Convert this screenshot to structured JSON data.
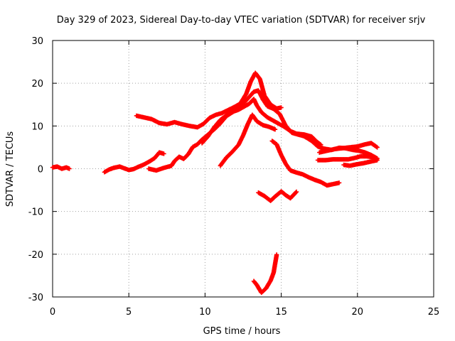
{
  "chart_data": {
    "type": "scatter",
    "title": "Day 329 of 2023, Sidereal Day-to-day VTEC variation (SDTVAR) for receiver srjv",
    "xlabel": "GPS time / hours",
    "ylabel": "SDTVAR / TECUs",
    "xlim": [
      0,
      25
    ],
    "ylim": [
      -30,
      30
    ],
    "xticks": [
      0,
      5,
      10,
      15,
      20,
      25
    ],
    "yticks": [
      -30,
      -20,
      -10,
      0,
      10,
      20,
      30
    ],
    "grid": true,
    "marker": "plus",
    "color": "#ff0000",
    "series": [
      {
        "name": "arc-1",
        "points": [
          [
            0.0,
            0.3
          ],
          [
            0.3,
            0.5
          ],
          [
            0.6,
            0.0
          ],
          [
            0.9,
            0.3
          ],
          [
            1.1,
            0.0
          ]
        ]
      },
      {
        "name": "arc-2",
        "points": [
          [
            3.4,
            -0.8
          ],
          [
            3.7,
            -0.2
          ],
          [
            4.0,
            0.2
          ],
          [
            4.4,
            0.5
          ],
          [
            4.7,
            0.1
          ],
          [
            5.0,
            -0.3
          ],
          [
            5.3,
            -0.1
          ],
          [
            5.6,
            0.4
          ],
          [
            6.0,
            1.0
          ],
          [
            6.4,
            1.8
          ],
          [
            6.7,
            2.5
          ],
          [
            7.0,
            3.8
          ],
          [
            7.3,
            3.5
          ]
        ]
      },
      {
        "name": "arc-3",
        "points": [
          [
            6.3,
            0.0
          ],
          [
            6.8,
            -0.4
          ],
          [
            7.3,
            0.2
          ],
          [
            7.8,
            0.7
          ],
          [
            8.0,
            1.8
          ],
          [
            8.3,
            2.8
          ],
          [
            8.6,
            2.3
          ],
          [
            8.9,
            3.4
          ],
          [
            9.2,
            5.1
          ],
          [
            9.5,
            5.7
          ],
          [
            9.8,
            6.8
          ],
          [
            10.2,
            8.0
          ],
          [
            10.6,
            9.2
          ],
          [
            11.0,
            10.6
          ],
          [
            11.4,
            12.3
          ],
          [
            11.8,
            13.2
          ],
          [
            12.2,
            14.2
          ],
          [
            12.6,
            15.6
          ],
          [
            12.9,
            16.8
          ],
          [
            13.2,
            18.0
          ],
          [
            13.5,
            18.3
          ],
          [
            13.8,
            16.2
          ],
          [
            14.1,
            14.6
          ],
          [
            14.5,
            14.0
          ],
          [
            14.9,
            12.8
          ],
          [
            15.3,
            10.0
          ],
          [
            15.7,
            8.4
          ],
          [
            16.1,
            8.0
          ],
          [
            16.5,
            7.6
          ],
          [
            17.0,
            6.5
          ],
          [
            17.4,
            5.2
          ],
          [
            17.8,
            4.7
          ],
          [
            18.3,
            4.4
          ],
          [
            18.8,
            4.9
          ],
          [
            19.2,
            4.8
          ],
          [
            19.7,
            4.4
          ],
          [
            20.1,
            4.2
          ],
          [
            20.5,
            3.8
          ],
          [
            20.9,
            3.2
          ],
          [
            21.3,
            2.4
          ]
        ]
      },
      {
        "name": "arc-4",
        "points": [
          [
            5.5,
            12.4
          ],
          [
            6.0,
            12.0
          ],
          [
            6.5,
            11.6
          ],
          [
            7.0,
            10.7
          ],
          [
            7.5,
            10.4
          ],
          [
            8.0,
            10.9
          ],
          [
            8.5,
            10.4
          ],
          [
            9.0,
            10.0
          ],
          [
            9.5,
            9.7
          ],
          [
            9.9,
            10.5
          ],
          [
            10.3,
            11.9
          ],
          [
            10.7,
            12.6
          ],
          [
            11.1,
            13.0
          ],
          [
            11.5,
            13.7
          ],
          [
            11.9,
            14.4
          ],
          [
            12.3,
            15.2
          ],
          [
            12.7,
            17.5
          ],
          [
            13.0,
            20.4
          ],
          [
            13.3,
            22.4
          ],
          [
            13.6,
            21.0
          ],
          [
            13.9,
            17.1
          ],
          [
            14.3,
            15.0
          ],
          [
            14.7,
            14.1
          ],
          [
            15.0,
            14.3
          ]
        ]
      },
      {
        "name": "arc-5",
        "points": [
          [
            9.8,
            6.0
          ],
          [
            10.2,
            7.6
          ],
          [
            10.6,
            9.7
          ],
          [
            11.0,
            11.4
          ],
          [
            11.4,
            12.5
          ],
          [
            11.8,
            13.3
          ],
          [
            12.2,
            13.8
          ],
          [
            12.6,
            14.6
          ],
          [
            12.9,
            15.2
          ],
          [
            13.2,
            16.3
          ],
          [
            13.4,
            14.8
          ],
          [
            13.7,
            13.2
          ],
          [
            14.1,
            12.0
          ],
          [
            14.5,
            11.2
          ],
          [
            14.9,
            10.4
          ],
          [
            15.2,
            9.8
          ],
          [
            15.6,
            8.8
          ],
          [
            16.0,
            8.2
          ],
          [
            16.5,
            8.0
          ],
          [
            17.0,
            7.5
          ],
          [
            17.3,
            6.4
          ],
          [
            17.6,
            5.6
          ]
        ]
      },
      {
        "name": "arc-6",
        "points": [
          [
            11.0,
            0.7
          ],
          [
            11.4,
            2.6
          ],
          [
            11.8,
            4.0
          ],
          [
            12.2,
            5.6
          ],
          [
            12.5,
            7.8
          ],
          [
            12.8,
            10.4
          ],
          [
            13.1,
            12.6
          ],
          [
            13.4,
            11.1
          ],
          [
            13.8,
            10.2
          ],
          [
            14.2,
            9.8
          ],
          [
            14.6,
            9.2
          ]
        ]
      },
      {
        "name": "arc-7",
        "points": [
          [
            14.4,
            6.5
          ],
          [
            14.7,
            5.7
          ],
          [
            15.0,
            3.2
          ],
          [
            15.3,
            1.1
          ],
          [
            15.6,
            -0.4
          ],
          [
            16.0,
            -0.9
          ],
          [
            16.4,
            -1.3
          ],
          [
            16.8,
            -2.0
          ],
          [
            17.2,
            -2.6
          ],
          [
            17.6,
            -3.1
          ],
          [
            18.0,
            -3.9
          ],
          [
            18.4,
            -3.6
          ],
          [
            18.8,
            -3.3
          ]
        ]
      },
      {
        "name": "arc-8",
        "points": [
          [
            17.4,
            2.0
          ],
          [
            17.9,
            2.0
          ],
          [
            18.4,
            2.2
          ],
          [
            18.9,
            2.2
          ],
          [
            19.4,
            2.2
          ],
          [
            19.8,
            2.5
          ],
          [
            20.2,
            2.9
          ],
          [
            20.6,
            2.9
          ],
          [
            21.0,
            2.7
          ],
          [
            21.3,
            2.0
          ],
          [
            20.9,
            1.7
          ],
          [
            20.4,
            1.3
          ],
          [
            19.9,
            1.0
          ],
          [
            19.5,
            0.7
          ],
          [
            19.1,
            0.9
          ]
        ]
      },
      {
        "name": "arc-9",
        "points": [
          [
            17.5,
            3.8
          ],
          [
            18.0,
            4.2
          ],
          [
            18.5,
            4.6
          ],
          [
            19.0,
            4.8
          ],
          [
            19.5,
            5.0
          ],
          [
            20.0,
            5.2
          ],
          [
            20.5,
            5.7
          ],
          [
            20.9,
            6.0
          ],
          [
            21.3,
            5.0
          ]
        ]
      },
      {
        "name": "arc-10",
        "points": [
          [
            13.5,
            -5.6
          ],
          [
            13.9,
            -6.4
          ],
          [
            14.3,
            -7.5
          ],
          [
            14.6,
            -6.5
          ],
          [
            15.0,
            -5.3
          ],
          [
            15.3,
            -6.2
          ],
          [
            15.6,
            -6.9
          ],
          [
            16.0,
            -5.4
          ]
        ]
      },
      {
        "name": "arc-11",
        "points": [
          [
            13.2,
            -26.3
          ],
          [
            13.4,
            -27.2
          ],
          [
            13.7,
            -29.0
          ],
          [
            14.0,
            -28.0
          ],
          [
            14.3,
            -26.2
          ],
          [
            14.5,
            -24.3
          ],
          [
            14.6,
            -22.2
          ],
          [
            14.7,
            -20.1
          ]
        ]
      }
    ]
  }
}
